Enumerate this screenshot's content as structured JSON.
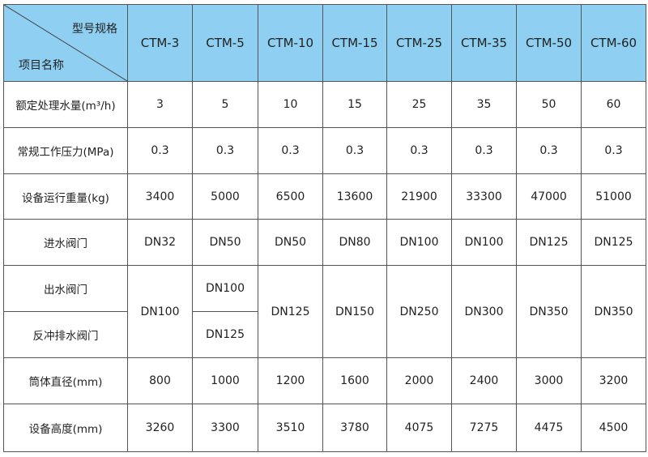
{
  "header": {
    "corner_top": "型号规格",
    "corner_bottom": "项目名称",
    "models": [
      "CTM-3",
      "CTM-5",
      "CTM-10",
      "CTM-15",
      "CTM-25",
      "CTM-35",
      "CTM-50",
      "CTM-60"
    ]
  },
  "rows": {
    "flow": {
      "label": "额定处理水量(m³/h)",
      "values": [
        "3",
        "5",
        "10",
        "15",
        "25",
        "35",
        "50",
        "60"
      ]
    },
    "pressure": {
      "label": "常规工作压力(MPa)",
      "values": [
        "0.3",
        "0.3",
        "0.3",
        "0.3",
        "0.3",
        "0.3",
        "0.3",
        "0.3"
      ]
    },
    "weight": {
      "label": "设备运行重量(kg)",
      "values": [
        "3400",
        "5000",
        "6500",
        "13600",
        "21900",
        "33300",
        "47000",
        "51000"
      ]
    },
    "inlet": {
      "label": "进水阀门",
      "values": [
        "DN32",
        "DN50",
        "DN50",
        "DN80",
        "DN100",
        "DN100",
        "DN125",
        "DN125"
      ]
    },
    "outlet": {
      "label": "出水阀门",
      "ctm3_merged": "DN100",
      "ctm5": "DN100",
      "merged": [
        "DN125",
        "DN150",
        "DN250",
        "DN300",
        "DN350",
        "DN350"
      ]
    },
    "backwash": {
      "label": "反冲排水阀门",
      "ctm5": "DN125"
    },
    "diameter": {
      "label": "筒体直径(mm)",
      "values": [
        "800",
        "1000",
        "1200",
        "1600",
        "2000",
        "2400",
        "3000",
        "3200"
      ]
    },
    "height": {
      "label": "设备高度(mm)",
      "values": [
        "3260",
        "3300",
        "3510",
        "3780",
        "4075",
        "7275",
        "4475",
        "4500"
      ]
    }
  },
  "colors": {
    "header_bg": "#8fd0f2",
    "border": "#555555"
  }
}
